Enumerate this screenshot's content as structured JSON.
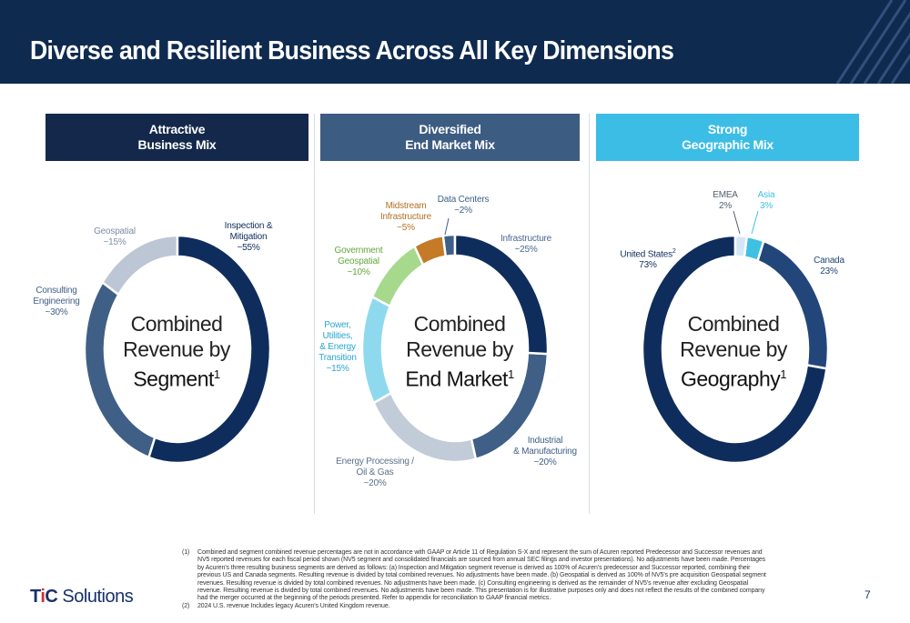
{
  "title": "Diverse and Resilient Business Across All Key Dimensions",
  "panels": [
    {
      "line1": "Attractive",
      "line2": "Business Mix",
      "color": "#13284a"
    },
    {
      "line1": "Diversified",
      "line2": "End Market Mix",
      "color": "#3d5c82"
    },
    {
      "line1": "Strong",
      "line2": "Geographic Mix",
      "color": "#3cbde6"
    }
  ],
  "chart_data": [
    {
      "type": "pie",
      "center_text": [
        "Combined",
        "Revenue by",
        "Segment",
        "1"
      ],
      "slices": [
        {
          "name": "Inspection & Mitigation",
          "label": [
            "Inspection &",
            "Mitigation",
            "~55%"
          ],
          "value": 55,
          "color": "#0f2d5c",
          "label_color": "#0f2d5c"
        },
        {
          "name": "Consulting Engineering",
          "label": [
            "Consulting",
            "Engineering",
            "~30%"
          ],
          "value": 30,
          "color": "#3f5f86",
          "label_color": "#3f5f86"
        },
        {
          "name": "Geospatial",
          "label": [
            "Geospatial",
            "~15%"
          ],
          "value": 15,
          "color": "#bcc6d4",
          "label_color": "#7d8ea6"
        }
      ]
    },
    {
      "type": "pie",
      "center_text": [
        "Combined",
        "Revenue by",
        "End Market",
        "1"
      ],
      "slices": [
        {
          "name": "Infrastructure",
          "label": [
            "Infrastructure",
            "~25%"
          ],
          "value": 25,
          "color": "#0f2d5c",
          "label_color": "#4a6690"
        },
        {
          "name": "Industrial & Manufacturing",
          "label": [
            "Industrial",
            "& Manufacturing",
            "~20%"
          ],
          "value": 20,
          "color": "#3f5f86",
          "label_color": "#3f5f86"
        },
        {
          "name": "Energy Processing / Oil & Gas",
          "label": [
            "Energy Processing /",
            "Oil & Gas",
            "~20%"
          ],
          "value": 20,
          "color": "#c2cbd8",
          "label_color": "#5d6f88"
        },
        {
          "name": "Power, Utilities, & Energy Transition",
          "label": [
            "Power,",
            "Utilities,",
            "& Energy",
            "Transition",
            "~15%"
          ],
          "value": 15,
          "color": "#8fd9ef",
          "label_color": "#2aa6d0"
        },
        {
          "name": "Government Geospatial",
          "label": [
            "Government",
            "Geospatial",
            "~10%"
          ],
          "value": 10,
          "color": "#a6d98b",
          "label_color": "#62a83e"
        },
        {
          "name": "Midstream Infrastructure",
          "label": [
            "Midstream",
            "Infrastructure",
            "~5%"
          ],
          "value": 5,
          "color": "#c47a27",
          "label_color": "#b46f26"
        },
        {
          "name": "Data Centers",
          "label": [
            "Data Centers",
            "~2%"
          ],
          "value": 2,
          "color": "#3e5f88",
          "label_color": "#3e5f88"
        }
      ]
    },
    {
      "type": "pie",
      "center_text": [
        "Combined",
        "Revenue by",
        "Geography",
        "1"
      ],
      "slices": [
        {
          "name": "EMEA",
          "label": [
            "EMEA",
            "2%"
          ],
          "value": 2,
          "color": "#d5e6f5",
          "label_color": "#555f6e"
        },
        {
          "name": "Asia",
          "label": [
            "Asia",
            "3%"
          ],
          "value": 3,
          "color": "#3fc1e3",
          "label_color": "#3fc1e3"
        },
        {
          "name": "Canada",
          "label": [
            "Canada",
            "23%"
          ],
          "value": 23,
          "color": "#22467a",
          "label_color": "#22467a"
        },
        {
          "name": "United States",
          "label": [
            "United States",
            "2",
            "73%"
          ],
          "value": 73,
          "color": "#0f2d5c",
          "label_color": "#0f2d5c"
        }
      ]
    }
  ],
  "footnotes": [
    {
      "num": "(1)",
      "text": "Combined and segment combined revenue percentages are not in accordance with GAAP or Article 11 of Regulation S-X and represent the sum of Acuren reported Predecessor and Successor revenues and NV5 reported revenues for each fiscal period shown (NV5 segment and consolidated financials are sourced from annual SEC filings and investor presentations). No adjustments have been made. Percentages by Acuren's three resulting business segments are derived as follows: (a) Inspection and Mitigation segment revenue is derived as 100% of Acuren's predecessor and Successor reported, combining their previous US and Canada segments. Resulting revenue is divided by total combined revenues. No adjustments have been made. (b) Geospatial is derived as 100% of NV5's pre acquisition Geospatial segment revenues. Resulting revenue is divided by total combined revenues. No adjustments have been made. (c) Consulting engineering is derived as the remainder of NV5's revenue after excluding Geospatial revenue. Resulting revenue is divided by total combined revenues. No adjustments have been made. This presentation is for illustrative purposes only and does not reflect the results of the combined company had the merger occurred at the beginning of the periods presented. Refer to appendix for reconciliation to GAAP financial metrics."
    },
    {
      "num": "(2)",
      "text": "2024 U.S. revenue Includes legacy Acuren's United Kingdom revenue."
    }
  ],
  "logo": {
    "t": "T",
    "i": "i",
    "c": "C",
    "rest": " Solutions"
  },
  "page_number": "7"
}
